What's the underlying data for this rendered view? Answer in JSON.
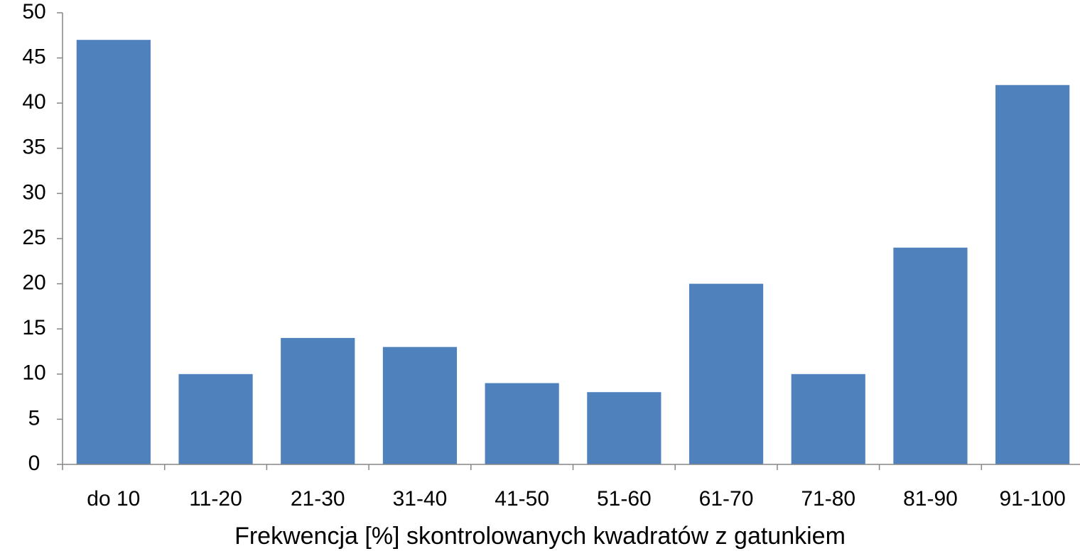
{
  "chart_data": {
    "type": "bar",
    "title": "",
    "xlabel": "Frekwencja [%] skontrolowanych kwadratów z gatunkiem",
    "ylabel": "",
    "categories": [
      "do 10",
      "11-20",
      "21-30",
      "31-40",
      "41-50",
      "51-60",
      "61-70",
      "71-80",
      "81-90",
      "91-100"
    ],
    "values": [
      47,
      10,
      14,
      13,
      9,
      8,
      20,
      10,
      24,
      42
    ],
    "ylim": [
      0,
      50
    ],
    "yticks": [
      0,
      5,
      10,
      15,
      20,
      25,
      30,
      35,
      40,
      45,
      50
    ],
    "grid": false,
    "legend": "none",
    "bar_color": "#4f81bd",
    "axis_color": "#868686"
  }
}
